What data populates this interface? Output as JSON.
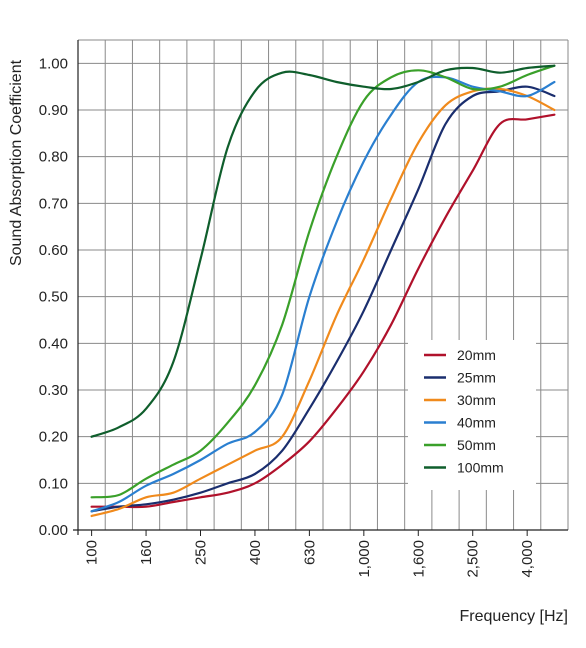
{
  "chart_data": {
    "type": "line",
    "title": "",
    "xlabel": "Frequency [Hz]",
    "ylabel": "Sound Absorption Coefficient",
    "x_scale": "log (1/3-octave bands)",
    "x": [
      100,
      125,
      160,
      200,
      250,
      315,
      400,
      500,
      630,
      800,
      1000,
      1250,
      1600,
      2000,
      2500,
      3150,
      4000,
      5000
    ],
    "x_tick_labels": [
      "100",
      "160",
      "250",
      "400",
      "630",
      "1,000",
      "1,600",
      "2,500",
      "4,000"
    ],
    "y_tick_labels": [
      "0.00",
      "0.10",
      "0.20",
      "0.30",
      "0.40",
      "0.50",
      "0.60",
      "0.70",
      "0.80",
      "0.90",
      "1.00"
    ],
    "ylim": [
      0,
      1.05
    ],
    "grid": true,
    "legend_position": "lower-right",
    "series": [
      {
        "name": "20mm",
        "color": "#b0112b",
        "values": [
          0.05,
          0.05,
          0.05,
          0.06,
          0.07,
          0.08,
          0.1,
          0.14,
          0.19,
          0.26,
          0.34,
          0.44,
          0.56,
          0.67,
          0.77,
          0.87,
          0.88,
          0.89
        ]
      },
      {
        "name": "25mm",
        "color": "#1a2e6e",
        "values": [
          0.04,
          0.05,
          0.055,
          0.065,
          0.08,
          0.1,
          0.12,
          0.17,
          0.26,
          0.36,
          0.47,
          0.6,
          0.73,
          0.87,
          0.93,
          0.94,
          0.95,
          0.93
        ]
      },
      {
        "name": "30mm",
        "color": "#f08a1c",
        "values": [
          0.03,
          0.045,
          0.07,
          0.08,
          0.11,
          0.14,
          0.17,
          0.2,
          0.32,
          0.46,
          0.58,
          0.71,
          0.83,
          0.91,
          0.94,
          0.945,
          0.93,
          0.9
        ]
      },
      {
        "name": "40mm",
        "color": "#2a7fd0",
        "values": [
          0.04,
          0.06,
          0.095,
          0.12,
          0.15,
          0.185,
          0.21,
          0.29,
          0.5,
          0.66,
          0.79,
          0.89,
          0.96,
          0.97,
          0.95,
          0.94,
          0.93,
          0.96
        ]
      },
      {
        "name": "50mm",
        "color": "#3aa02a",
        "values": [
          0.07,
          0.075,
          0.11,
          0.14,
          0.17,
          0.23,
          0.31,
          0.44,
          0.64,
          0.8,
          0.92,
          0.97,
          0.985,
          0.97,
          0.945,
          0.95,
          0.975,
          0.995
        ]
      },
      {
        "name": "100mm",
        "color": "#0f5e2c",
        "values": [
          0.2,
          0.22,
          0.26,
          0.36,
          0.58,
          0.82,
          0.94,
          0.98,
          0.975,
          0.96,
          0.95,
          0.945,
          0.96,
          0.985,
          0.99,
          0.98,
          0.99,
          0.995
        ]
      }
    ]
  }
}
